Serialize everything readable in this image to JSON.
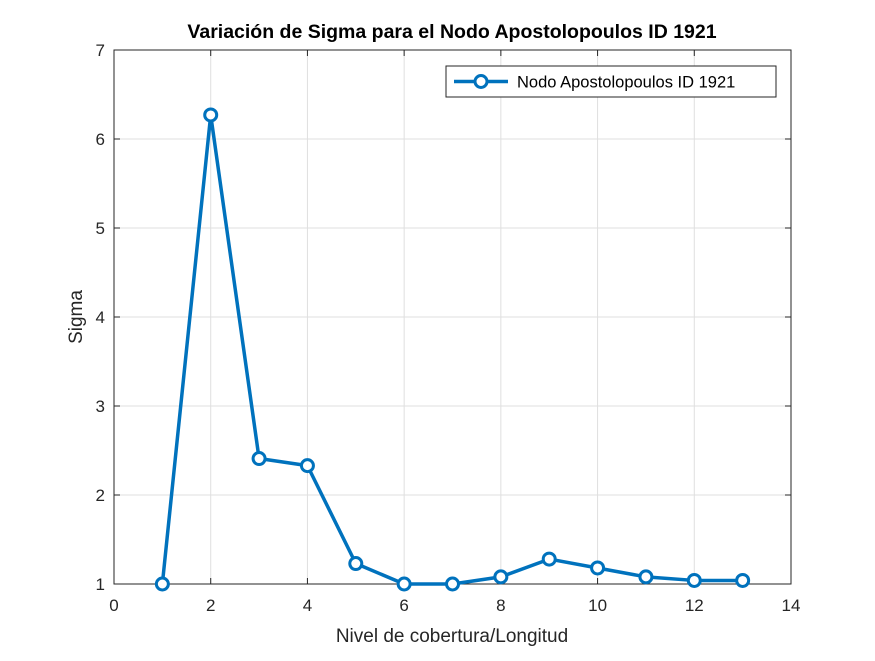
{
  "chart_data": {
    "type": "line",
    "title": "Variación de Sigma para el Nodo Apostolopoulos ID 1921",
    "xlabel": "Nivel de cobertura/Longitud",
    "ylabel": "Sigma",
    "xlim": [
      0,
      14
    ],
    "ylim": [
      1,
      7
    ],
    "xticks": [
      0,
      2,
      4,
      6,
      8,
      10,
      12,
      14
    ],
    "yticks": [
      1,
      2,
      3,
      4,
      5,
      6,
      7
    ],
    "grid": true,
    "legend_position": "top-right",
    "series": [
      {
        "name": "Nodo Apostolopoulos ID 1921",
        "color": "#0072bd",
        "marker": "circle",
        "x": [
          1,
          2,
          3,
          4,
          5,
          6,
          7,
          8,
          9,
          10,
          11,
          12,
          13
        ],
        "y": [
          1.0,
          6.27,
          2.41,
          2.33,
          1.23,
          1.0,
          1.0,
          1.08,
          1.28,
          1.18,
          1.08,
          1.04,
          1.04
        ]
      }
    ]
  }
}
